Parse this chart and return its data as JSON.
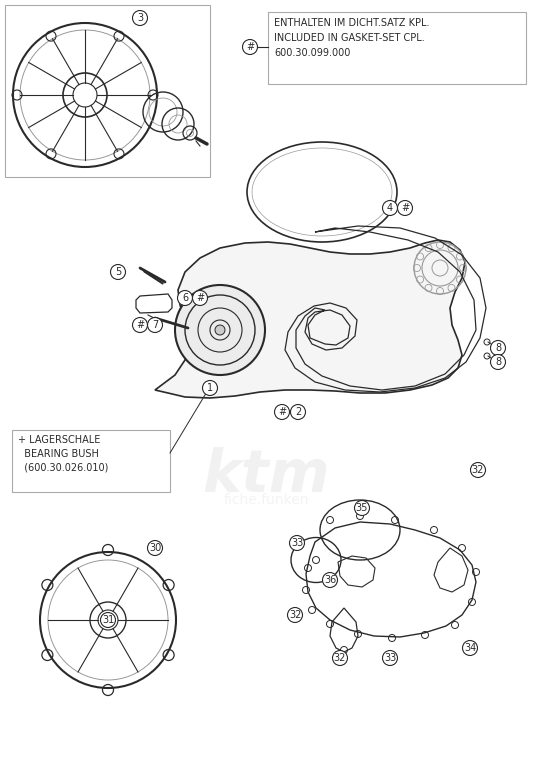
{
  "bg_color": "#ffffff",
  "lc": "#2a2a2a",
  "lg": "#999999",
  "mg": "#777777",
  "note_text": "ENTHALTEN IM DICHT.SATZ KPL.\nINCLUDED IN GASKET-SET CPL.\n600.30.099.000",
  "bearing_text": "+ LAGERSCHALE\n  BEARING BUSH\n  (600.30.026.010)",
  "label_fs": 7,
  "note_fs": 7
}
